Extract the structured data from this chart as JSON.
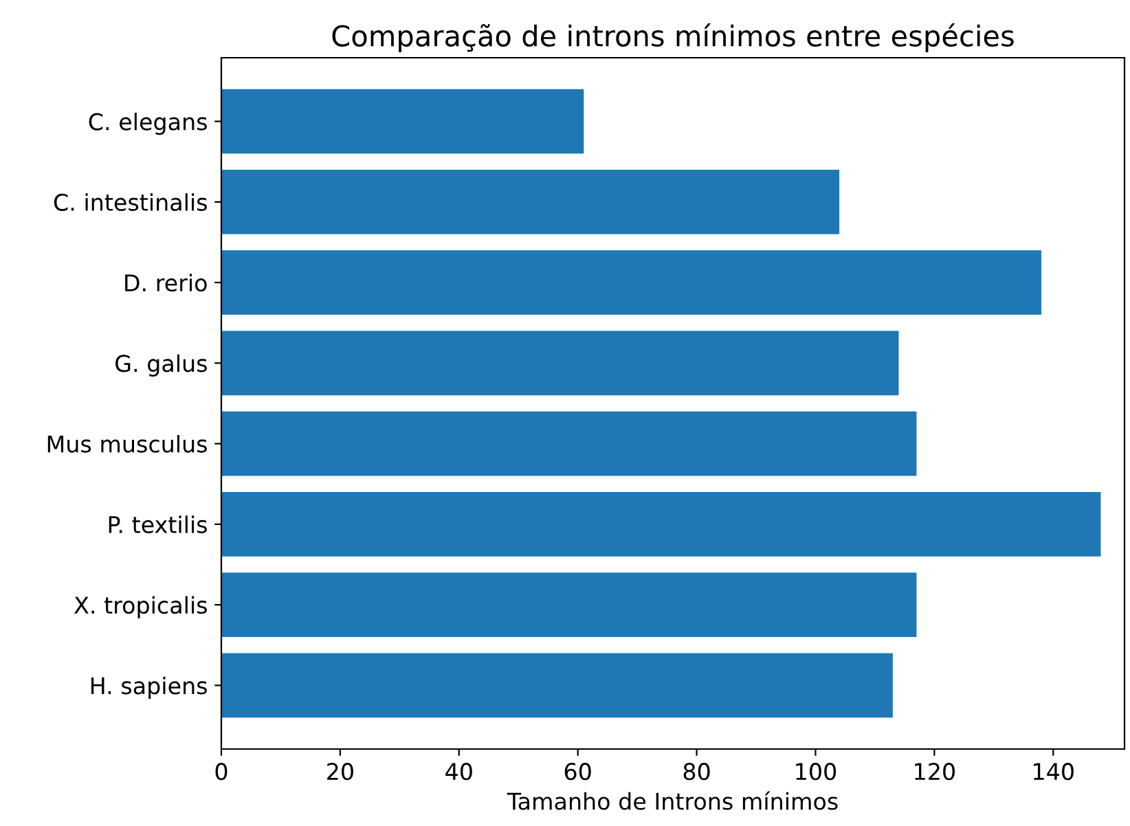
{
  "chart_data": {
    "type": "bar",
    "orientation": "horizontal",
    "title": "Comparação de introns mínimos entre espécies",
    "xlabel": "Tamanho de Introns mínimos",
    "categories": [
      "C. elegans",
      "C. intestinalis",
      "D. rerio",
      "G. galus",
      "Mus musculus",
      "P. textilis",
      "X. tropicalis",
      "H. sapiens"
    ],
    "values": [
      61,
      104,
      138,
      114,
      117,
      148,
      117,
      113
    ],
    "color": "#1f77b4",
    "xlim": [
      0,
      152
    ],
    "xticks": [
      0,
      20,
      40,
      60,
      80,
      100,
      120,
      140
    ],
    "grid": false,
    "legend": false
  }
}
